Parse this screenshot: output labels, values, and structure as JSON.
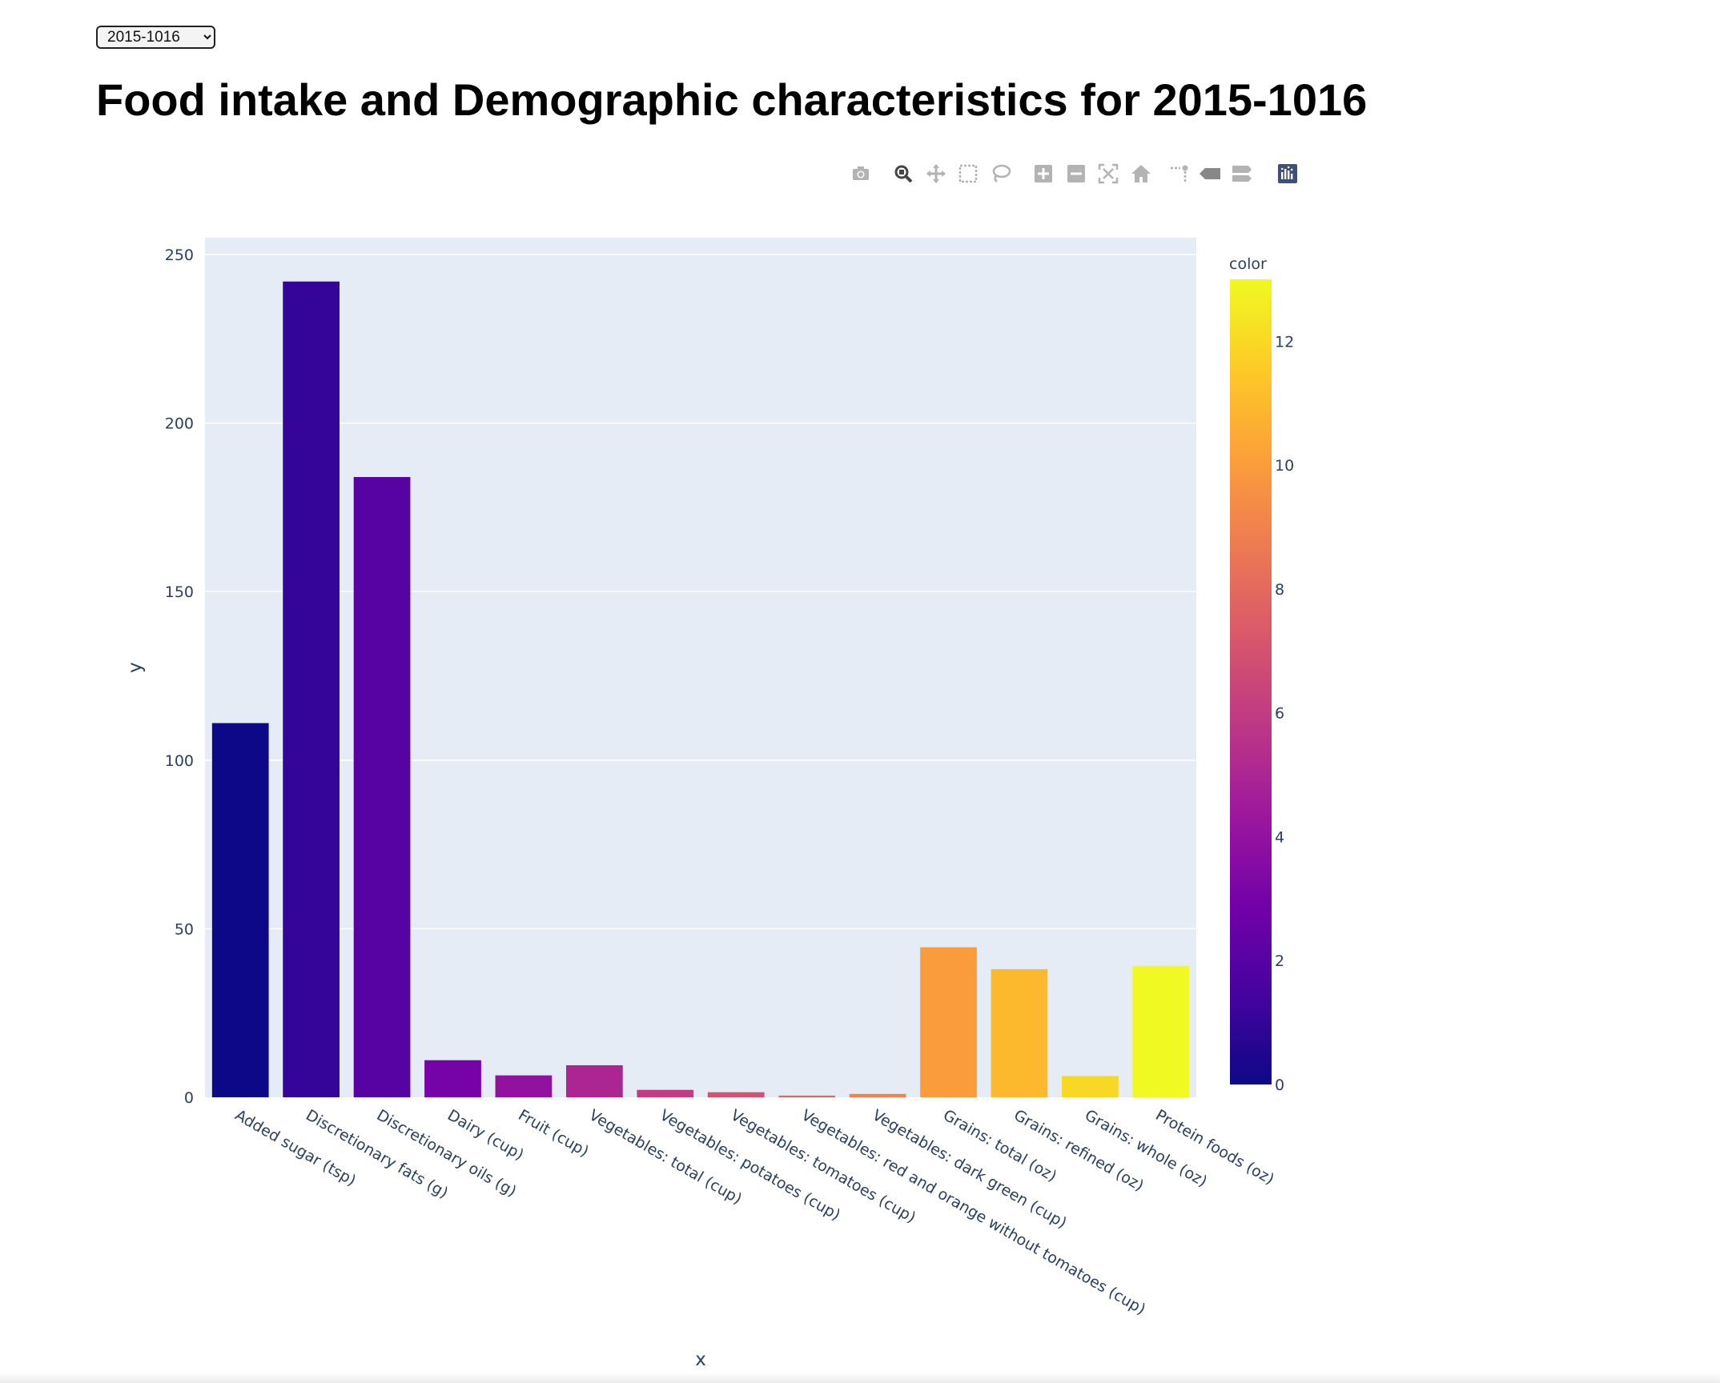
{
  "selector": {
    "selected": "2015-1016"
  },
  "title": "Food intake and Demographic characteristics for 2015-1016",
  "modebar": {
    "buttons": [
      "camera-icon",
      "zoom-icon",
      "pan-icon",
      "box-select-icon",
      "lasso-select-icon",
      "zoom-in-icon",
      "zoom-out-icon",
      "autoscale-icon",
      "reset-axes-icon",
      "spike-lines-icon",
      "hover-closest-icon",
      "hover-compare-icon",
      "plotly-logo-icon"
    ]
  },
  "chart_data": {
    "type": "bar",
    "xlabel": "x",
    "ylabel": "y",
    "ylim": [
      0,
      255
    ],
    "yticks": [
      0,
      50,
      100,
      150,
      200,
      250
    ],
    "grid": true,
    "categories": [
      "Added sugar (tsp)",
      "Discretionary fats (g)",
      "Discretionary oils (g)",
      "Dairy (cup)",
      "Fruit (cup)",
      "Vegetables: total (cup)",
      "Vegetables: potatoes (cup)",
      "Vegetables: tomatoes (cup)",
      "Vegetables: red and orange without tomatoes (cup)",
      "Vegetables: dark green (cup)",
      "Grains: total (oz)",
      "Grains: refined (oz)",
      "Grains: whole (oz)",
      "Protein foods (oz)"
    ],
    "values": [
      111,
      242,
      184,
      11,
      6.5,
      9.5,
      2.2,
      1.5,
      0.5,
      1.0,
      44.5,
      38,
      6.3,
      39
    ],
    "color": [
      0,
      1,
      2,
      3,
      4,
      5,
      6,
      7,
      8,
      9,
      10,
      11,
      12,
      13
    ],
    "colorbar": {
      "title": "color",
      "range": [
        0,
        13
      ],
      "ticks": [
        0,
        2,
        4,
        6,
        8,
        10,
        12
      ],
      "scale": [
        "#0d0887",
        "#46039f",
        "#7201a8",
        "#9c179e",
        "#bd3786",
        "#d8576b",
        "#ed7953",
        "#fb9f3a",
        "#fdca26",
        "#f0f921"
      ]
    }
  }
}
